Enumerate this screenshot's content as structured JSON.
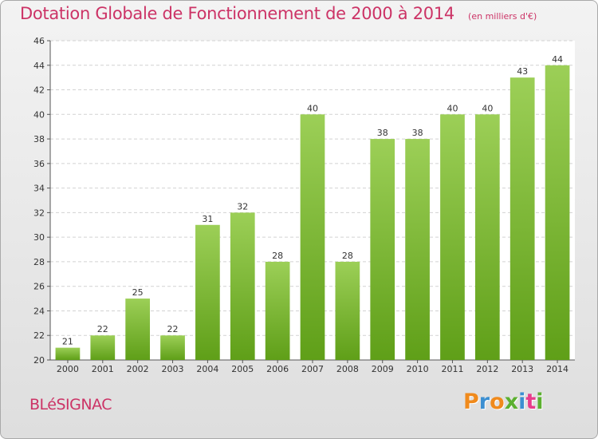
{
  "chart_data": {
    "type": "bar",
    "title": "Dotation Globale de Fonctionnement de 2000 à 2014",
    "subtitle": "(en milliers d'€)",
    "categories": [
      "2000",
      "2001",
      "2002",
      "2003",
      "2004",
      "2005",
      "2006",
      "2007",
      "2008",
      "2009",
      "2010",
      "2011",
      "2012",
      "2013",
      "2014"
    ],
    "values": [
      21,
      22,
      25,
      22,
      31,
      32,
      28,
      40,
      28,
      38,
      38,
      40,
      40,
      43,
      44
    ],
    "ylim": [
      20,
      46
    ],
    "yticks": [
      20,
      22,
      24,
      26,
      28,
      30,
      32,
      34,
      36,
      38,
      40,
      42,
      44,
      46
    ],
    "grid": true,
    "bar_color": "#7cba33"
  },
  "footer": {
    "commune": "BLéSIGNAC",
    "brand": {
      "text": "Proxiti",
      "letter_colors": [
        "#f08a1c",
        "#3c8fd1",
        "#f08a1c",
        "#5cb030",
        "#3c8fd1",
        "#e83c8c",
        "#5cb030"
      ]
    }
  }
}
